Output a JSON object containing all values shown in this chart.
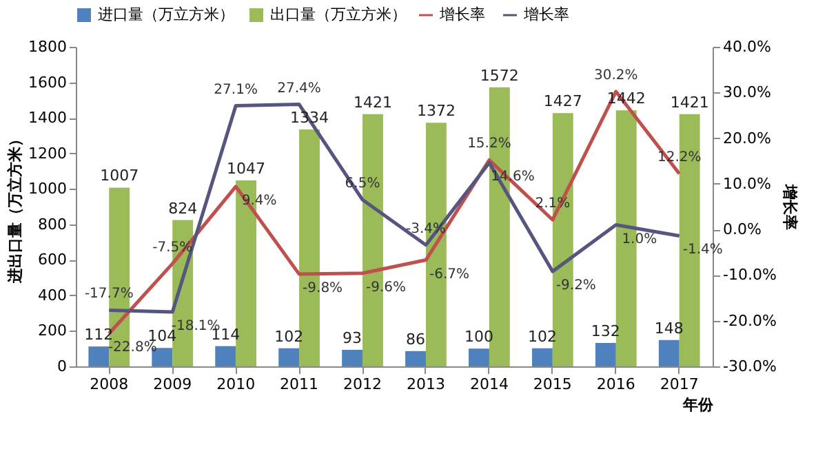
{
  "chart_data": {
    "type": "bar",
    "categories": [
      "2008",
      "2009",
      "2010",
      "2011",
      "2012",
      "2013",
      "2014",
      "2015",
      "2016",
      "2017"
    ],
    "xlabel": "年份",
    "ylabel": "进出口量（万立方米）",
    "y2label": "增长率",
    "ylim": [
      0,
      1800
    ],
    "yticks": [
      0,
      200,
      400,
      600,
      800,
      1000,
      1200,
      1400,
      1600,
      1800
    ],
    "y2lim": [
      -30,
      40
    ],
    "y2ticks": [
      {
        "value": -30,
        "label": "-30.0%"
      },
      {
        "value": -20,
        "label": "-20.0%"
      },
      {
        "value": -10,
        "label": "-10.0%"
      },
      {
        "value": 0,
        "label": "0.0%"
      },
      {
        "value": 10,
        "label": "10.0%"
      },
      {
        "value": 20,
        "label": "20.0%"
      },
      {
        "value": 30,
        "label": "30.0%"
      },
      {
        "value": 40,
        "label": "40.0%"
      }
    ],
    "legend": "top",
    "grid": false,
    "data_labels": true,
    "series": [
      {
        "name": "进口量（万立方米）",
        "color": "#4f81bd",
        "values": [
          112,
          104,
          114,
          102,
          93,
          86,
          100,
          102,
          132,
          148
        ]
      },
      {
        "name": "出口量（万立方米）",
        "color": "#9bbb59",
        "values": [
          1007,
          824,
          1047,
          1334,
          1421,
          1372,
          1572,
          1427,
          1442,
          1421
        ]
      },
      {
        "name": "增长率",
        "type": "line",
        "axis": "y2",
        "color": "#c0504d",
        "values": [
          -22.8,
          -7.5,
          9.4,
          -9.8,
          -9.6,
          -6.7,
          15.2,
          2.1,
          30.2,
          12.2
        ],
        "value_labels": [
          "-22.8%",
          "-7.5%",
          "9.4%",
          "-9.8%",
          "-9.6%",
          "-6.7%",
          "15.2%",
          "2.1%",
          "30.2%",
          "12.2%"
        ]
      },
      {
        "name": "增长率",
        "type": "line",
        "axis": "y2",
        "color": "#55557f",
        "values": [
          -17.7,
          -18.1,
          27.1,
          27.4,
          6.5,
          -3.4,
          14.6,
          -9.2,
          1.0,
          -1.4
        ],
        "value_labels": [
          "-17.7%",
          "-18.1%",
          "27.1%",
          "27.4%",
          "6.5%",
          "-3.4%",
          "14.6%",
          "-9.2%",
          "1.0%",
          "-1.4%"
        ]
      }
    ]
  }
}
